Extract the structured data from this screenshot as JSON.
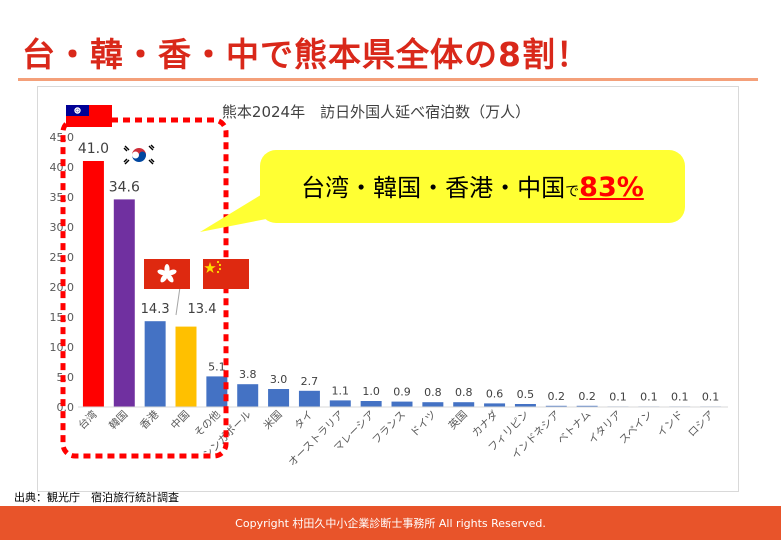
{
  "headline": {
    "text": "台・韓・香・中で熊本県全体の8割！"
  },
  "callout": {
    "prefix": "台湾・韓国・香港・中国",
    "particle": "で",
    "percent": "83%"
  },
  "source": {
    "text": "出典：観光庁　宿泊旅行統計調査"
  },
  "footer": {
    "text": "Copyright 村田久中小企業診断士事務所 All rights Reserved."
  },
  "flags": {
    "taiwan": "taiwan-flag-icon",
    "korea": "korea-flag-icon",
    "hongkong": "hongkong-flag-icon",
    "china": "china-flag-icon"
  },
  "chart_data": {
    "type": "bar",
    "title": "熊本2024年　訪日外国人延べ宿泊数（万人）",
    "xlabel": "",
    "ylabel": "",
    "ylim": [
      0,
      45
    ],
    "yticks": [
      "0.0",
      "5.0",
      "10.0",
      "15.0",
      "20.0",
      "25.0",
      "30.0",
      "35.0",
      "40.0",
      "45.0"
    ],
    "categories": [
      "台湾",
      "韓国",
      "香港",
      "中国",
      "その他",
      "シンガポール",
      "米国",
      "タイ",
      "オーストラリア",
      "マレーシア",
      "フランス",
      "ドイツ",
      "英国",
      "カナダ",
      "フィリピン",
      "インドネシア",
      "ベトナム",
      "イタリア",
      "スペイン",
      "インド",
      "ロシア"
    ],
    "values": [
      41.0,
      34.6,
      14.3,
      13.4,
      5.1,
      3.8,
      3.0,
      2.7,
      1.1,
      1.0,
      0.9,
      0.8,
      0.8,
      0.6,
      0.5,
      0.2,
      0.2,
      0.1,
      0.1,
      0.1,
      0.1
    ],
    "value_labels": [
      "41.0",
      "34.6",
      "14.3",
      "13.4",
      "5.1",
      "3.8",
      "3.0",
      "2.7",
      "1.1",
      "1.0",
      "0.9",
      "0.8",
      "0.8",
      "0.6",
      "0.5",
      "0.2",
      "0.2",
      "0.1",
      "0.1",
      "0.1",
      "0.1"
    ],
    "bar_colors": [
      "#ff0000",
      "#7030a0",
      "#4472c4",
      "#ffc000",
      "#4472c4",
      "#4472c4",
      "#4472c4",
      "#4472c4",
      "#4472c4",
      "#4472c4",
      "#4472c4",
      "#4472c4",
      "#4472c4",
      "#4472c4",
      "#4472c4",
      "#4472c4",
      "#4472c4",
      "#4472c4",
      "#4472c4",
      "#4472c4",
      "#4472c4"
    ],
    "highlight_color": "#ff0000",
    "grid": false,
    "legend": "none"
  }
}
